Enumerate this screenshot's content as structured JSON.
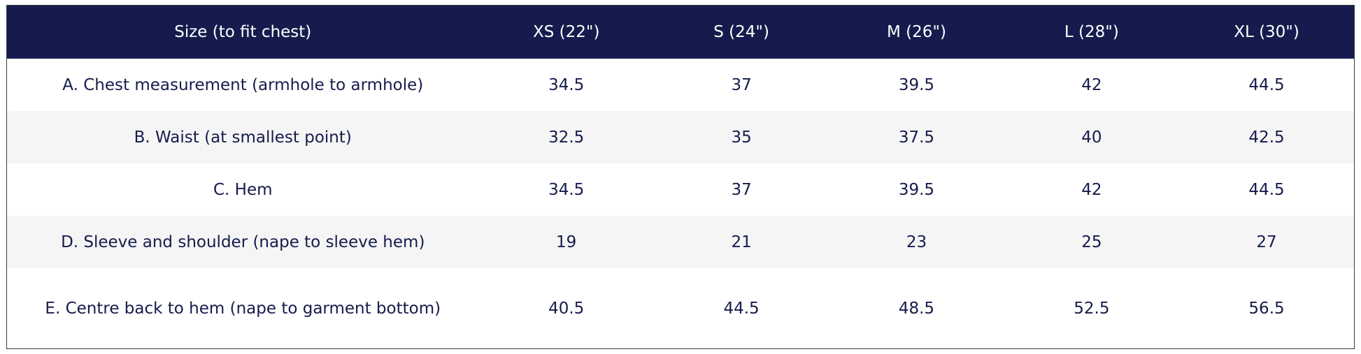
{
  "table": {
    "header": [
      "Size (to fit chest)",
      "XS (22\")",
      "S (24\")",
      "M (26\")",
      "L (28\")",
      "XL (30\")"
    ],
    "rows": [
      [
        "A. Chest measurement (armhole to armhole)",
        "34.5",
        "37",
        "39.5",
        "42",
        "44.5"
      ],
      [
        "B. Waist (at smallest point)",
        "32.5",
        "35",
        "37.5",
        "40",
        "42.5"
      ],
      [
        "C. Hem",
        "34.5",
        "37",
        "39.5",
        "42",
        "44.5"
      ],
      [
        "D. Sleeve and shoulder (nape to sleeve hem)",
        "19",
        "21",
        "23",
        "25",
        "27"
      ],
      [
        "E. Centre back to hem (nape to garment bottom)",
        "40.5",
        "44.5",
        "48.5",
        "52.5",
        "56.5"
      ]
    ]
  }
}
